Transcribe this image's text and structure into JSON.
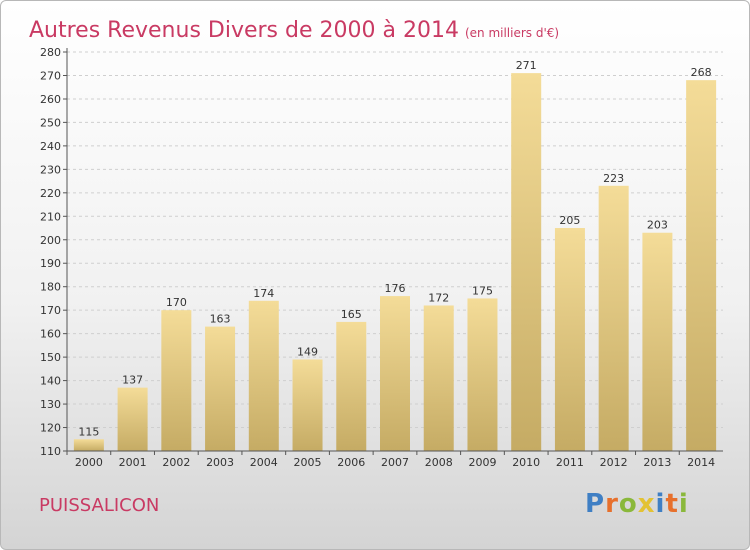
{
  "title": "Autres Revenus Divers de 2000 à 2014",
  "subtitle": "(en milliers d'€)",
  "place": "PUISSALICON",
  "logo": {
    "text": "Proxiti",
    "letters": [
      {
        "char": "P",
        "color": "#3f7fc4"
      },
      {
        "char": "r",
        "color": "#e7702c"
      },
      {
        "char": "o",
        "color": "#8ab83b"
      },
      {
        "char": "x",
        "color": "#e3c233"
      },
      {
        "char": "i",
        "color": "#3f7fc4"
      },
      {
        "char": "t",
        "color": "#e7702c"
      },
      {
        "char": "i",
        "color": "#8ab83b"
      }
    ]
  },
  "colors": {
    "title": "#c93a63",
    "bar_light": "#f4dc98",
    "bar_dark": "#c5ab64",
    "grid": "#cfcfcf"
  },
  "chart_data": {
    "type": "bar",
    "title": "Autres Revenus Divers de 2000 à 2014",
    "subtitle": "(en milliers d'€)",
    "xlabel": "",
    "ylabel": "",
    "categories": [
      "2000",
      "2001",
      "2002",
      "2003",
      "2004",
      "2005",
      "2006",
      "2007",
      "2008",
      "2009",
      "2010",
      "2011",
      "2012",
      "2013",
      "2014"
    ],
    "values": [
      115,
      137,
      170,
      163,
      174,
      149,
      165,
      176,
      172,
      175,
      271,
      205,
      223,
      203,
      268
    ],
    "ylim": [
      110,
      280
    ],
    "yticks": [
      110,
      120,
      130,
      140,
      150,
      160,
      170,
      180,
      190,
      200,
      210,
      220,
      230,
      240,
      250,
      260,
      270,
      280
    ],
    "grid": true,
    "legend": "none"
  }
}
